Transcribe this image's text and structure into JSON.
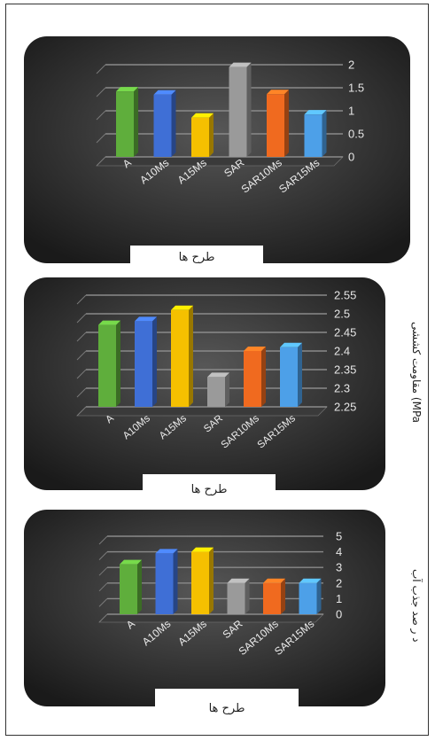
{
  "chart_data": [
    {
      "type": "bar",
      "categories": [
        "A",
        "A10Ms",
        "A15Ms",
        "SAR",
        "SAR10Ms",
        "SAR15Ms"
      ],
      "values": [
        1.42,
        1.35,
        0.85,
        1.95,
        1.36,
        0.92
      ],
      "ylim": [
        0,
        2
      ],
      "ticks": [
        "0",
        "0.5",
        "1",
        "1.5",
        "2"
      ],
      "xlabel": "طرح ها",
      "ylabel": "",
      "colors": [
        "#5fae3c",
        "#3f6fd6",
        "#f5c000",
        "#9a9a9a",
        "#f06a1f",
        "#4da0e8"
      ]
    },
    {
      "type": "bar",
      "categories": [
        "A",
        "A10Ms",
        "A15Ms",
        "SAR",
        "SAR10Ms",
        "SAR15Ms"
      ],
      "values": [
        2.47,
        2.48,
        2.51,
        2.33,
        2.4,
        2.41
      ],
      "ylim": [
        2.25,
        2.55
      ],
      "ticks": [
        "2.25",
        "2.3",
        "2.35",
        "2.4",
        "2.45",
        "2.5",
        "2.55"
      ],
      "xlabel": "طرح ها",
      "ylabel": "مقاومت کششی (MPa",
      "colors": [
        "#5fae3c",
        "#3f6fd6",
        "#f5c000",
        "#9a9a9a",
        "#f06a1f",
        "#4da0e8"
      ]
    },
    {
      "type": "bar",
      "categories": [
        "A",
        "A10Ms",
        "A15Ms",
        "SAR",
        "SAR10Ms",
        "SAR15Ms"
      ],
      "values": [
        3.2,
        3.9,
        4.0,
        2.0,
        2.0,
        2.0
      ],
      "ylim": [
        0,
        5
      ],
      "ticks": [
        "0",
        "1",
        "2",
        "3",
        "4",
        "5"
      ],
      "xlabel": "طرح ها",
      "ylabel": "د ر صد   جذب   آب",
      "colors": [
        "#5fae3c",
        "#3f6fd6",
        "#f5c000",
        "#9a9a9a",
        "#f06a1f",
        "#4da0e8"
      ]
    }
  ]
}
